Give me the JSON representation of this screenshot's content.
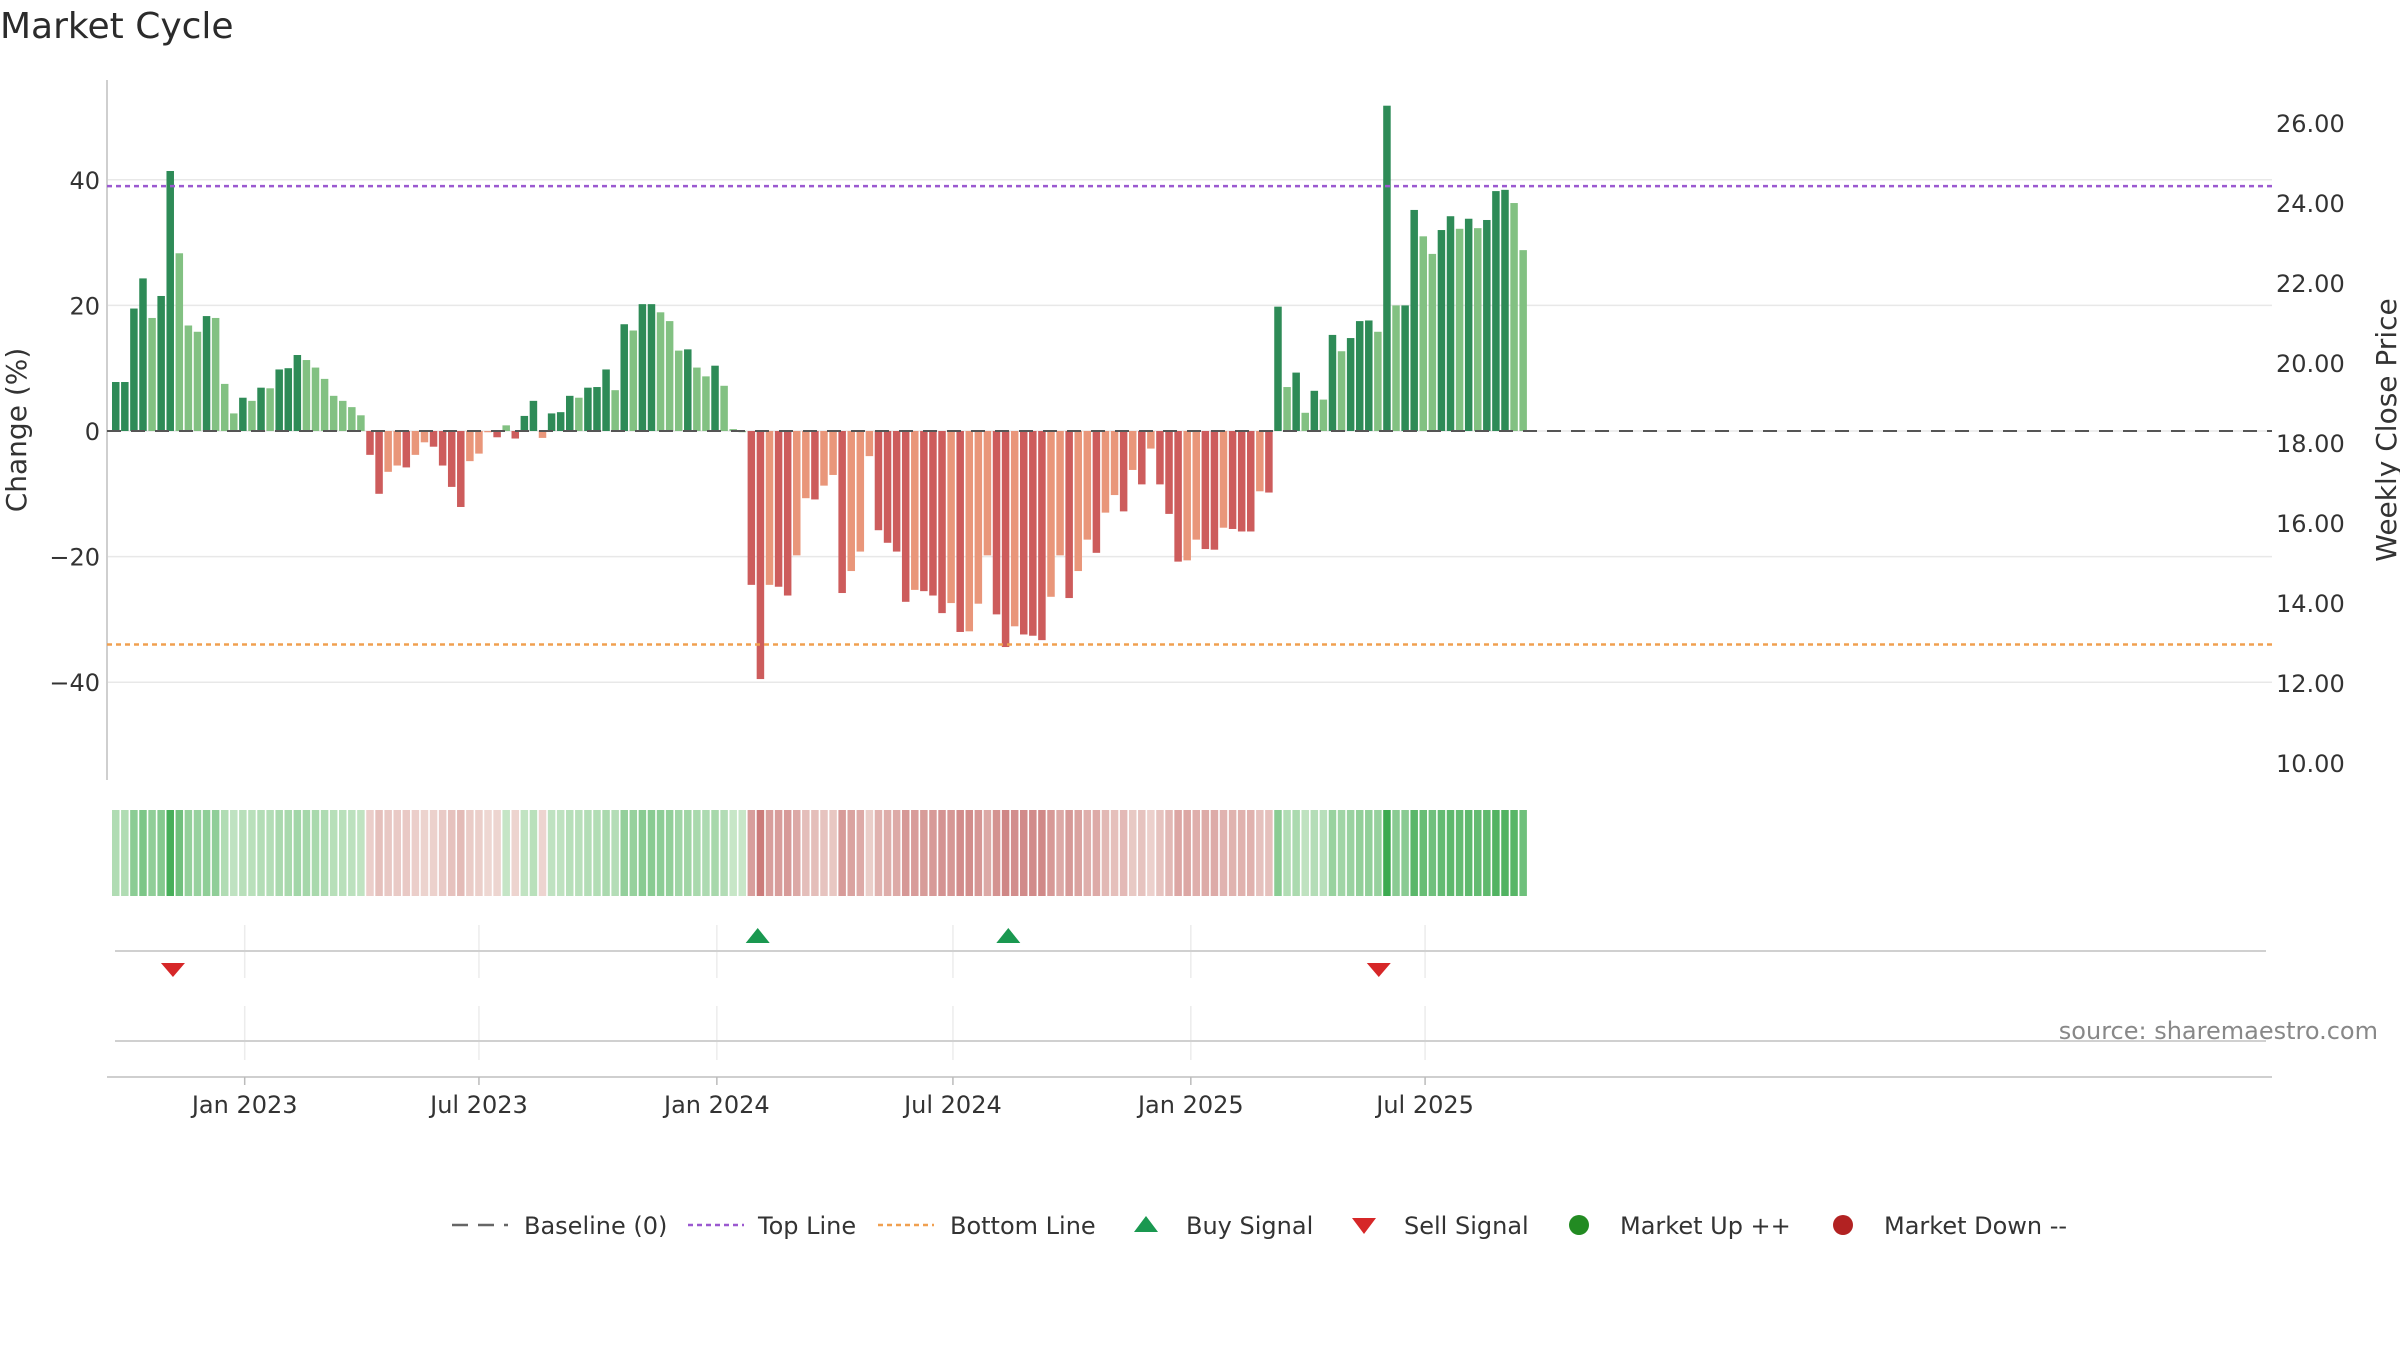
{
  "chart_data": {
    "type": "bar",
    "title": "Market Cycle",
    "ylabel_left": "Change (%)",
    "ylabel_right": "Weekly Close Price",
    "ylim_left": [
      -56,
      56
    ],
    "ylim_right": [
      9.5,
      27.0
    ],
    "yticks_left": [
      "40",
      "20",
      "0",
      "−20",
      "−40"
    ],
    "yticks_left_values": [
      40,
      20,
      0,
      -20,
      -40
    ],
    "yticks_right": [
      "26.00",
      "24.00",
      "22.00",
      "20.00",
      "18.00",
      "16.00",
      "14.00",
      "12.00",
      "10.00"
    ],
    "yticks_right_values": [
      26,
      24,
      22,
      20,
      18,
      16,
      14,
      12,
      10
    ],
    "xtick_labels": [
      "Jan 2023",
      "Jul 2023",
      "Jan 2024",
      "Jul 2024",
      "Jan 2025",
      "Jul 2025"
    ],
    "xtick_weeks": [
      14.2,
      40.0,
      66.2,
      92.2,
      118.4,
      144.2
    ],
    "top_line": 39,
    "bottom_line": -34,
    "grid": true,
    "colors": {
      "up_strong": "#2e8b57",
      "up_weak": "#82c182",
      "down_strong": "#cd5c5c",
      "down_weak": "#e9967a",
      "top_line": "#9b59d0",
      "bottom_line": "#f0a050",
      "buy": "#1a9850",
      "sell": "#d62728",
      "market_up": "#228b22",
      "market_down": "#b22222"
    },
    "values": [
      7.8,
      7.8,
      19.5,
      24.3,
      18.0,
      21.5,
      41.4,
      28.3,
      16.8,
      15.8,
      18.3,
      18.0,
      7.5,
      2.8,
      5.3,
      4.8,
      6.9,
      6.8,
      9.8,
      10.0,
      12.1,
      11.3,
      10.1,
      8.3,
      5.6,
      4.8,
      3.8,
      2.5,
      -3.8,
      -10.0,
      -6.5,
      -5.5,
      -5.8,
      -3.8,
      -1.8,
      -2.5,
      -5.5,
      -8.9,
      -12.1,
      -4.8,
      -3.6,
      -0.2,
      -1.0,
      0.9,
      -1.2,
      2.4,
      4.8,
      -1.1,
      2.8,
      3.0,
      5.6,
      5.3,
      6.9,
      7.0,
      9.8,
      6.5,
      17.0,
      16.0,
      20.2,
      20.2,
      18.9,
      17.5,
      12.8,
      13.0,
      10.1,
      8.7,
      10.4,
      7.2,
      0.3,
      0.0,
      -24.5,
      -39.5,
      -24.5,
      -24.8,
      -26.2,
      -19.8,
      -10.7,
      -10.9,
      -8.7,
      -7.0,
      -25.8,
      -22.3,
      -19.2,
      -4.0,
      -15.8,
      -17.8,
      -19.2,
      -27.2,
      -25.3,
      -25.5,
      -26.2,
      -29.0,
      -27.4,
      -32.0,
      -31.9,
      -27.5,
      -19.8,
      -29.2,
      -34.4,
      -31.1,
      -32.4,
      -32.6,
      -33.3,
      -26.4,
      -19.8,
      -26.6,
      -22.3,
      -17.3,
      -19.4,
      -13.0,
      -10.2,
      -12.8,
      -6.2,
      -8.5,
      -2.8,
      -8.5,
      -13.2,
      -20.8,
      -20.6,
      -17.3,
      -18.8,
      -18.9,
      -15.4,
      -15.6,
      -16.0,
      -16.0,
      -9.6,
      -9.8,
      19.8,
      7.0,
      9.3,
      2.9,
      6.4,
      5.0,
      15.3,
      12.7,
      14.8,
      17.5,
      17.6,
      15.8,
      51.8,
      20.0,
      20.0,
      35.2,
      31.0,
      28.2,
      32.0,
      34.2,
      32.2,
      33.8,
      32.3,
      33.6,
      38.2,
      38.4,
      36.3,
      28.8
    ],
    "strength_band": "per-week shade derived from values",
    "signals": [
      {
        "type": "sell",
        "week": 6.3
      },
      {
        "type": "buy",
        "week": 70.7
      },
      {
        "type": "buy",
        "week": 98.3
      },
      {
        "type": "sell",
        "week": 139.1
      }
    ],
    "legend": [
      {
        "label": "Baseline (0)",
        "marker": "dash-line"
      },
      {
        "label": "Top Line",
        "marker": "dotted-line-purple"
      },
      {
        "label": "Bottom Line",
        "marker": "dotted-line-orange"
      },
      {
        "label": "Buy Signal",
        "marker": "triangle-up"
      },
      {
        "label": "Sell Signal",
        "marker": "triangle-down"
      },
      {
        "label": "Market Up ++",
        "marker": "circle-green"
      },
      {
        "label": "Market Down --",
        "marker": "circle-red"
      }
    ],
    "legend_placement": "bottom-center",
    "source_text": "source: sharemaestro.com"
  }
}
